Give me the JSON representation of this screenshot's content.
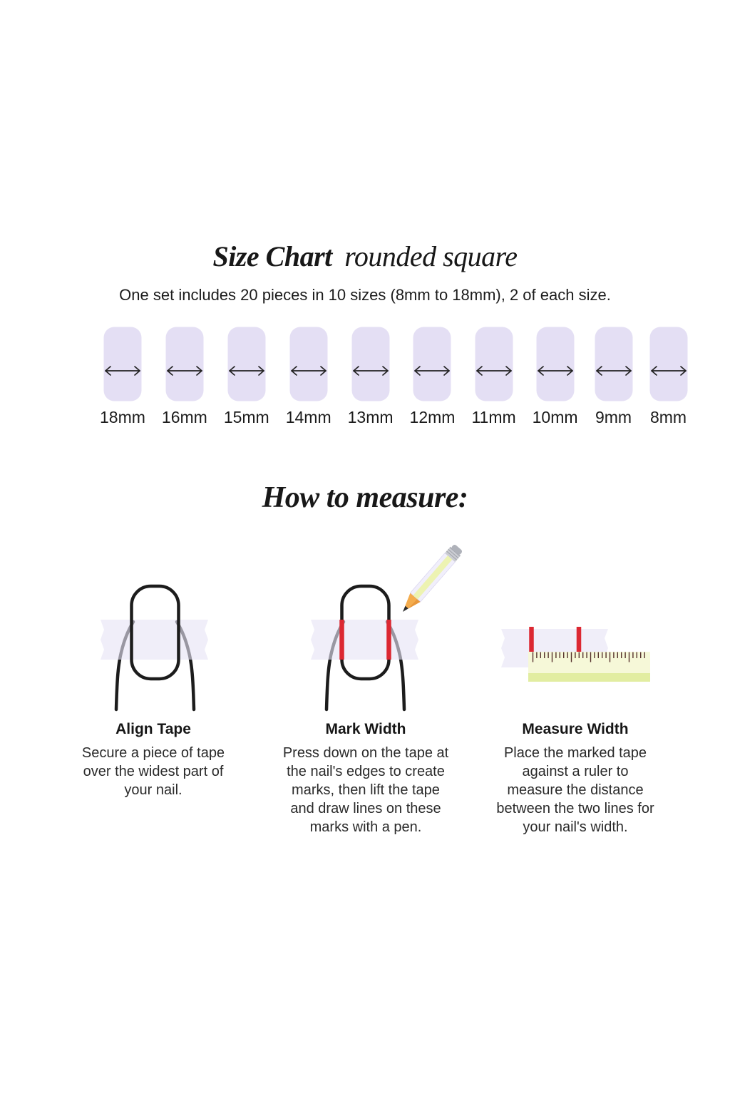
{
  "page": {
    "background": "#FFFFFF"
  },
  "header": {
    "title_main": "Size Chart",
    "title_sub": "rounded square",
    "subtitle": "One set includes 20 pieces in 10 sizes (8mm to 18mm), 2 of each size."
  },
  "size_chart": {
    "unit": "mm",
    "sizes": [
      "18mm",
      "16mm",
      "15mm",
      "14mm",
      "13mm",
      "12mm",
      "11mm",
      "10mm",
      "9mm",
      "8mm"
    ]
  },
  "how_to_measure": {
    "heading": "How to measure:",
    "steps": [
      {
        "title": "Align Tape",
        "lines": [
          "Secure a piece of tape",
          "over the widest part of",
          "your nail."
        ]
      },
      {
        "title": "Mark Width",
        "lines": [
          "Press down on the tape at",
          "the nail's edges to create",
          "marks, then lift the tape",
          "and draw lines on these",
          "marks with a pen."
        ]
      },
      {
        "title": "Measure Width",
        "lines": [
          "Place the marked tape",
          "against a ruler to",
          "measure the distance",
          "between the two lines for",
          "your nail's width."
        ]
      }
    ]
  },
  "colors": {
    "nail": "#E4DFF4",
    "tape": "#E7E3F6",
    "mark_red": "#DC2832",
    "ruler_body": "#F6F8D8",
    "ruler_stripe": "#E2EDA1",
    "outline": "#1C1C1C",
    "arrow": "#222222",
    "tick": "#55312C"
  }
}
